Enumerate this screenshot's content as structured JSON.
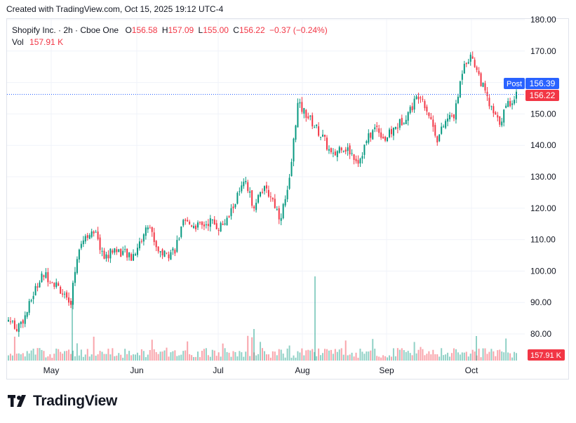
{
  "header": {
    "created_text": "Created with TradingView.com, Oct 15, 2025 19:12 UTC-4"
  },
  "legend": {
    "symbol": "Shopify Inc. · 2h · Cboe One",
    "o_label": "O",
    "o_value": "156.58",
    "h_label": "H",
    "h_value": "157.09",
    "l_label": "L",
    "l_value": "155.00",
    "c_label": "C",
    "c_value": "156.22",
    "change": "−0.37 (−0.24%)",
    "vol_label": "Vol",
    "vol_value": "157.91 K"
  },
  "badges": {
    "post_label": "Post",
    "post_price": "156.39",
    "last_price": "156.22",
    "volume": "157.91 K"
  },
  "colors": {
    "up": "#089981",
    "down": "#f23645",
    "post": "#2962ff",
    "grid": "#f0f3fa",
    "text": "#131722"
  },
  "footer": {
    "brand": "TradingView",
    "logo_icon": "tradingview-logo-icon"
  },
  "chart_data": {
    "type": "candlestick",
    "symbol": "Shopify Inc.",
    "interval": "2h",
    "yaxis": {
      "ticks": [
        80,
        90,
        100,
        110,
        120,
        130,
        140,
        150,
        160,
        170,
        180
      ],
      "tick_labels": [
        "80.00",
        "90.00",
        "100.00",
        "110.00",
        "120.00",
        "130.00",
        "140.00",
        "150.00",
        "160.00",
        "170.00",
        "180.00"
      ],
      "range": [
        75,
        182
      ],
      "position": "right"
    },
    "xaxis": {
      "labels": [
        "May",
        "Jun",
        "Jul",
        "Aug",
        "Sep",
        "Oct"
      ]
    },
    "grid": true,
    "last_price": 156.22,
    "post_price": 156.39,
    "volume_last": "157.91 K",
    "price_path": [
      {
        "x": "Apr 23",
        "close": 84.5
      },
      {
        "x": "Apr 25",
        "close": 82.0
      },
      {
        "x": "Apr 28",
        "close": 86.0
      },
      {
        "x": "May 1",
        "close": 94.0
      },
      {
        "x": "May 5",
        "close": 99.0
      },
      {
        "x": "May 7",
        "close": 97.0
      },
      {
        "x": "May 9",
        "close": 94.0
      },
      {
        "x": "May 12",
        "close": 88.0
      },
      {
        "x": "May 14",
        "close": 108.0
      },
      {
        "x": "May 16",
        "close": 112.0
      },
      {
        "x": "May 19",
        "close": 111.0
      },
      {
        "x": "May 22",
        "close": 104.0
      },
      {
        "x": "May 26",
        "close": 107.0
      },
      {
        "x": "May 29",
        "close": 106.0
      },
      {
        "x": "Jun 2",
        "close": 104.0
      },
      {
        "x": "Jun 5",
        "close": 109.0
      },
      {
        "x": "Jun 9",
        "close": 115.0
      },
      {
        "x": "Jun 11",
        "close": 107.0
      },
      {
        "x": "Jun 16",
        "close": 105.0
      },
      {
        "x": "Jun 19",
        "close": 107.0
      },
      {
        "x": "Jun 23",
        "close": 115.0
      },
      {
        "x": "Jun 27",
        "close": 115.0
      },
      {
        "x": "Jul 1",
        "close": 114.0
      },
      {
        "x": "Jul 7",
        "close": 116.0
      },
      {
        "x": "Jul 10",
        "close": 114.0
      },
      {
        "x": "Jul 14",
        "close": 116.0
      },
      {
        "x": "Jul 17",
        "close": 123.0
      },
      {
        "x": "Jul 21",
        "close": 128.0
      },
      {
        "x": "Jul 23",
        "close": 121.0
      },
      {
        "x": "Jul 28",
        "close": 126.0
      },
      {
        "x": "Jul 31",
        "close": 124.0
      },
      {
        "x": "Aug 4",
        "close": 117.0
      },
      {
        "x": "Aug 5",
        "close": 126.0
      },
      {
        "x": "Aug 6",
        "close": 153.0
      },
      {
        "x": "Aug 8",
        "close": 150.0
      },
      {
        "x": "Aug 12",
        "close": 146.0
      },
      {
        "x": "Aug 15",
        "close": 142.0
      },
      {
        "x": "Aug 19",
        "close": 136.0
      },
      {
        "x": "Aug 22",
        "close": 140.0
      },
      {
        "x": "Aug 26",
        "close": 138.0
      },
      {
        "x": "Aug 28",
        "close": 135.0
      },
      {
        "x": "Sep 2",
        "close": 142.0
      },
      {
        "x": "Sep 5",
        "close": 146.0
      },
      {
        "x": "Sep 9",
        "close": 142.0
      },
      {
        "x": "Sep 12",
        "close": 145.0
      },
      {
        "x": "Sep 16",
        "close": 148.0
      },
      {
        "x": "Sep 19",
        "close": 152.0
      },
      {
        "x": "Sep 23",
        "close": 157.0
      },
      {
        "x": "Sep 25",
        "close": 150.0
      },
      {
        "x": "Sep 29",
        "close": 142.0
      },
      {
        "x": "Oct 1",
        "close": 148.0
      },
      {
        "x": "Oct 3",
        "close": 150.0
      },
      {
        "x": "Oct 6",
        "close": 167.0
      },
      {
        "x": "Oct 8",
        "close": 168.0
      },
      {
        "x": "Oct 9",
        "close": 160.0
      },
      {
        "x": "Oct 10",
        "close": 152.0
      },
      {
        "x": "Oct 13",
        "close": 147.0
      },
      {
        "x": "Oct 14",
        "close": 153.0
      },
      {
        "x": "Oct 15",
        "close": 156.22
      }
    ]
  }
}
